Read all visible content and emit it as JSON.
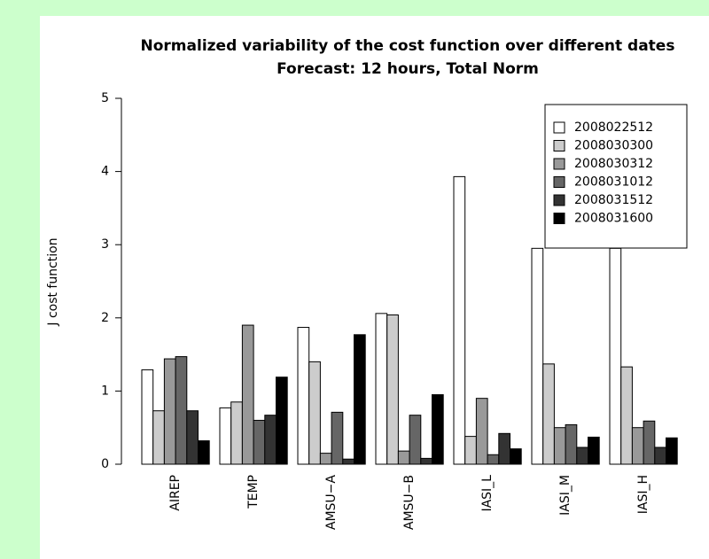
{
  "chart_data": {
    "type": "bar",
    "title": "Normalized variability of the cost function over different dates",
    "subtitle": "Forecast: 12 hours, Total Norm",
    "y_label": "J cost function",
    "categories": [
      "AIREP",
      "TEMP",
      "AMSU−A",
      "AMSU−B",
      "IASI_L",
      "IASI_M",
      "IASI_H"
    ],
    "series": [
      {
        "name": "2008022512",
        "color": "#ffffff",
        "values": [
          1.29,
          0.77,
          1.87,
          2.06,
          3.93,
          2.95,
          2.95
        ]
      },
      {
        "name": "2008030300",
        "color": "#cccccc",
        "values": [
          0.73,
          0.85,
          1.4,
          2.04,
          0.38,
          1.37,
          1.33
        ]
      },
      {
        "name": "2008030312",
        "color": "#999999",
        "values": [
          1.44,
          1.9,
          0.15,
          0.18,
          0.9,
          0.5,
          0.5
        ]
      },
      {
        "name": "2008031012",
        "color": "#666666",
        "values": [
          1.47,
          0.6,
          0.71,
          0.67,
          0.13,
          0.54,
          0.59
        ]
      },
      {
        "name": "2008031512",
        "color": "#333333",
        "values": [
          0.73,
          0.67,
          0.07,
          0.08,
          0.42,
          0.23,
          0.23
        ]
      },
      {
        "name": "2008031600",
        "color": "#000000",
        "values": [
          0.32,
          1.19,
          1.77,
          0.95,
          0.21,
          0.37,
          0.36
        ]
      }
    ],
    "ylim": [
      0,
      5
    ],
    "yticks": [
      0,
      1,
      2,
      3,
      4,
      5
    ],
    "grid": false,
    "legend": "topright"
  }
}
